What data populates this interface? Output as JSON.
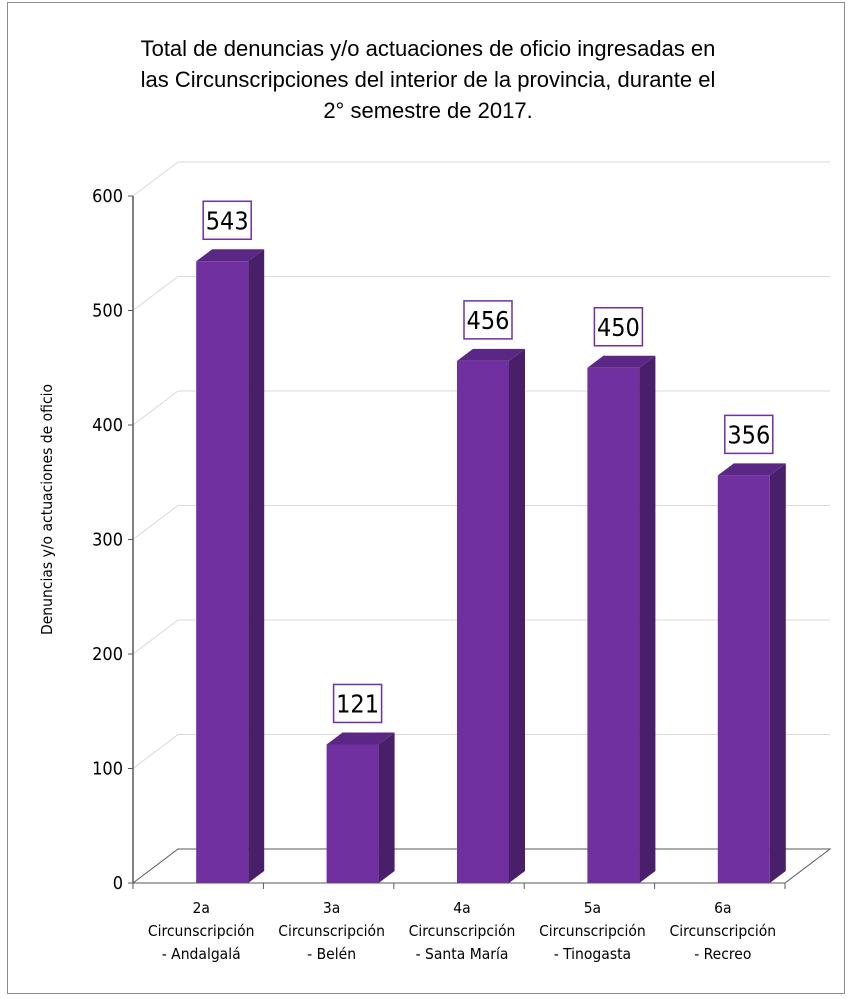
{
  "chart_data": {
    "type": "bar",
    "title": "Total de denuncias y/o actuaciones de oficio ingresadas en\nlas Circunscripciones del interior de la provincia, durante el\n2° semestre de 2017.",
    "xlabel": "",
    "ylabel": "Denuncias y/o actuaciones de oficio",
    "ylim": [
      0,
      600
    ],
    "yticks": [
      0,
      100,
      200,
      300,
      400,
      500,
      600
    ],
    "categories": [
      [
        "2a",
        "Circunscripción",
        "- Andalgalá"
      ],
      [
        "3a",
        "Circunscripción",
        "- Belén"
      ],
      [
        "4a",
        "Circunscripción",
        "- Santa María"
      ],
      [
        "5a",
        "Circunscripción",
        "- Tinogasta"
      ],
      [
        "6a",
        "Circunscripción",
        "- Recreo"
      ]
    ],
    "values": [
      543,
      121,
      456,
      450,
      356
    ],
    "grid": true,
    "style": "3d-column",
    "colors": {
      "bar_front": "#7030a0",
      "bar_side": "#4a1f6a",
      "bar_top": "#5b2785",
      "label_border": "#7030a0",
      "grid": "#d9d9d9",
      "axis": "#595959"
    }
  }
}
